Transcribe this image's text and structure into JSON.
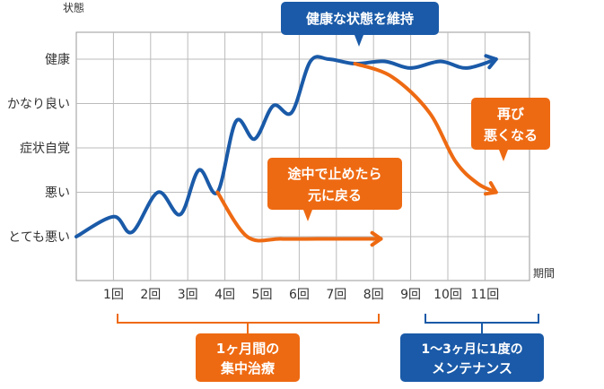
{
  "chart_data": {
    "type": "line",
    "y_axis_title": "状態",
    "x_axis_title": "期間",
    "y_categories": [
      "健康",
      "かなり良い",
      "症状自覚",
      "悪い",
      "とても悪い"
    ],
    "x_categories": [
      "1回",
      "2回",
      "3回",
      "4回",
      "5回",
      "6回",
      "7回",
      "8回",
      "9回",
      "10回",
      "11回"
    ],
    "grid": true,
    "series": [
      {
        "key": "main",
        "color": "#1a5aa8",
        "points": [
          [
            0.0,
            4.0
          ],
          [
            1.0,
            3.55
          ],
          [
            1.5,
            3.9
          ],
          [
            2.2,
            3.0
          ],
          [
            2.8,
            3.5
          ],
          [
            3.3,
            2.5
          ],
          [
            3.8,
            3.0
          ],
          [
            4.3,
            1.4
          ],
          [
            4.8,
            1.8
          ],
          [
            5.3,
            1.05
          ],
          [
            5.8,
            1.2
          ],
          [
            6.3,
            0.05
          ],
          [
            6.8,
            0.0
          ],
          [
            7.5,
            0.1
          ],
          [
            8.3,
            0.05
          ],
          [
            9.0,
            0.2
          ],
          [
            9.8,
            0.05
          ],
          [
            10.5,
            0.2
          ],
          [
            11.3,
            0.0
          ]
        ]
      },
      {
        "key": "stop",
        "color": "#ee6a12",
        "points": [
          [
            3.8,
            3.0
          ],
          [
            4.6,
            4.0
          ],
          [
            5.5,
            4.05
          ],
          [
            6.5,
            4.05
          ],
          [
            7.5,
            4.05
          ],
          [
            8.2,
            4.05
          ]
        ]
      },
      {
        "key": "relapse",
        "color": "#ee6a12",
        "points": [
          [
            7.5,
            0.1
          ],
          [
            8.5,
            0.4
          ],
          [
            9.5,
            1.2
          ],
          [
            10.2,
            2.3
          ],
          [
            10.8,
            2.8
          ],
          [
            11.3,
            3.0
          ]
        ]
      }
    ]
  },
  "callouts": {
    "maintain": "健康な状態を維持",
    "relapse_line1": "再び",
    "relapse_line2": "悪くなる",
    "stop_line1": "途中で止めたら",
    "stop_line2": "元に戻る"
  },
  "brackets": {
    "treatment": {
      "line1": "1ヶ月間の",
      "line2": "集中治療",
      "color": "#ee6a12"
    },
    "maintenance": {
      "line1": "1〜3ヶ月に1度の",
      "line2": "メンテナンス",
      "color": "#1a5aa8"
    }
  }
}
